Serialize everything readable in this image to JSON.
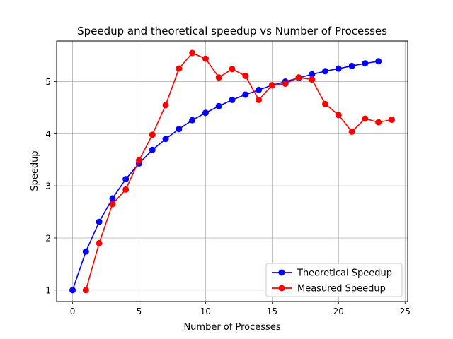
{
  "chart_data": {
    "type": "line",
    "title": "Speedup and theoretical speedup vs Number of Processes",
    "xlabel": "Number of Processes",
    "ylabel": "Speedup",
    "xlim": [
      -1.2,
      25.2
    ],
    "ylim": [
      0.78,
      5.78
    ],
    "xticks": [
      0,
      5,
      10,
      15,
      20,
      25
    ],
    "yticks": [
      1,
      2,
      3,
      4,
      5
    ],
    "grid": true,
    "legend_position": "lower-right",
    "series": [
      {
        "name": "Theoretical Speedup",
        "color": "#0000ff",
        "x": [
          0,
          1,
          2,
          3,
          4,
          5,
          6,
          7,
          8,
          9,
          10,
          11,
          12,
          13,
          14,
          15,
          16,
          17,
          18,
          19,
          20,
          21,
          22,
          23
        ],
        "values": [
          1.0,
          1.74,
          2.31,
          2.76,
          3.13,
          3.43,
          3.69,
          3.9,
          4.09,
          4.26,
          4.4,
          4.53,
          4.65,
          4.75,
          4.84,
          4.93,
          5.0,
          5.07,
          5.14,
          5.2,
          5.25,
          5.3,
          5.35,
          5.39
        ]
      },
      {
        "name": "Measured Speedup",
        "color": "#ff0000",
        "x": [
          1,
          2,
          3,
          4,
          5,
          6,
          7,
          8,
          9,
          10,
          11,
          12,
          13,
          14,
          15,
          16,
          17,
          18,
          19,
          20,
          21,
          22,
          23,
          24
        ],
        "values": [
          1.0,
          1.9,
          2.65,
          2.93,
          3.49,
          3.98,
          4.55,
          5.25,
          5.55,
          5.44,
          5.08,
          5.24,
          5.11,
          4.65,
          4.93,
          4.96,
          5.08,
          5.04,
          4.57,
          4.36,
          4.04,
          4.29,
          4.22,
          4.27
        ]
      }
    ]
  }
}
